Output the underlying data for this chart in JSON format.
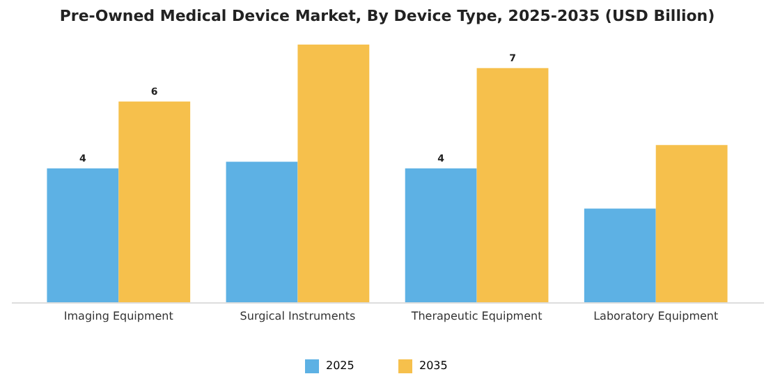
{
  "chart_data": {
    "type": "bar",
    "title": "Pre-Owned Medical Device Market, By Device Type, 2025-2035 (USD Billion)",
    "categories": [
      "Imaging Equipment",
      "Surgical Instruments",
      "Therapeutic Equipment",
      "Laboratory Equipment"
    ],
    "data_labels": false,
    "series": [
      {
        "name": "2025",
        "color": "#5db1e4",
        "values": [
          4,
          4.2,
          4,
          2.8
        ],
        "value_labels": [
          "4",
          null,
          "4",
          null
        ]
      },
      {
        "name": "2035",
        "color": "#f6c04c",
        "values": [
          6,
          7.7,
          7,
          4.7
        ],
        "value_labels": [
          "6",
          null,
          "7",
          null
        ]
      }
    ],
    "legend": "bottom"
  }
}
